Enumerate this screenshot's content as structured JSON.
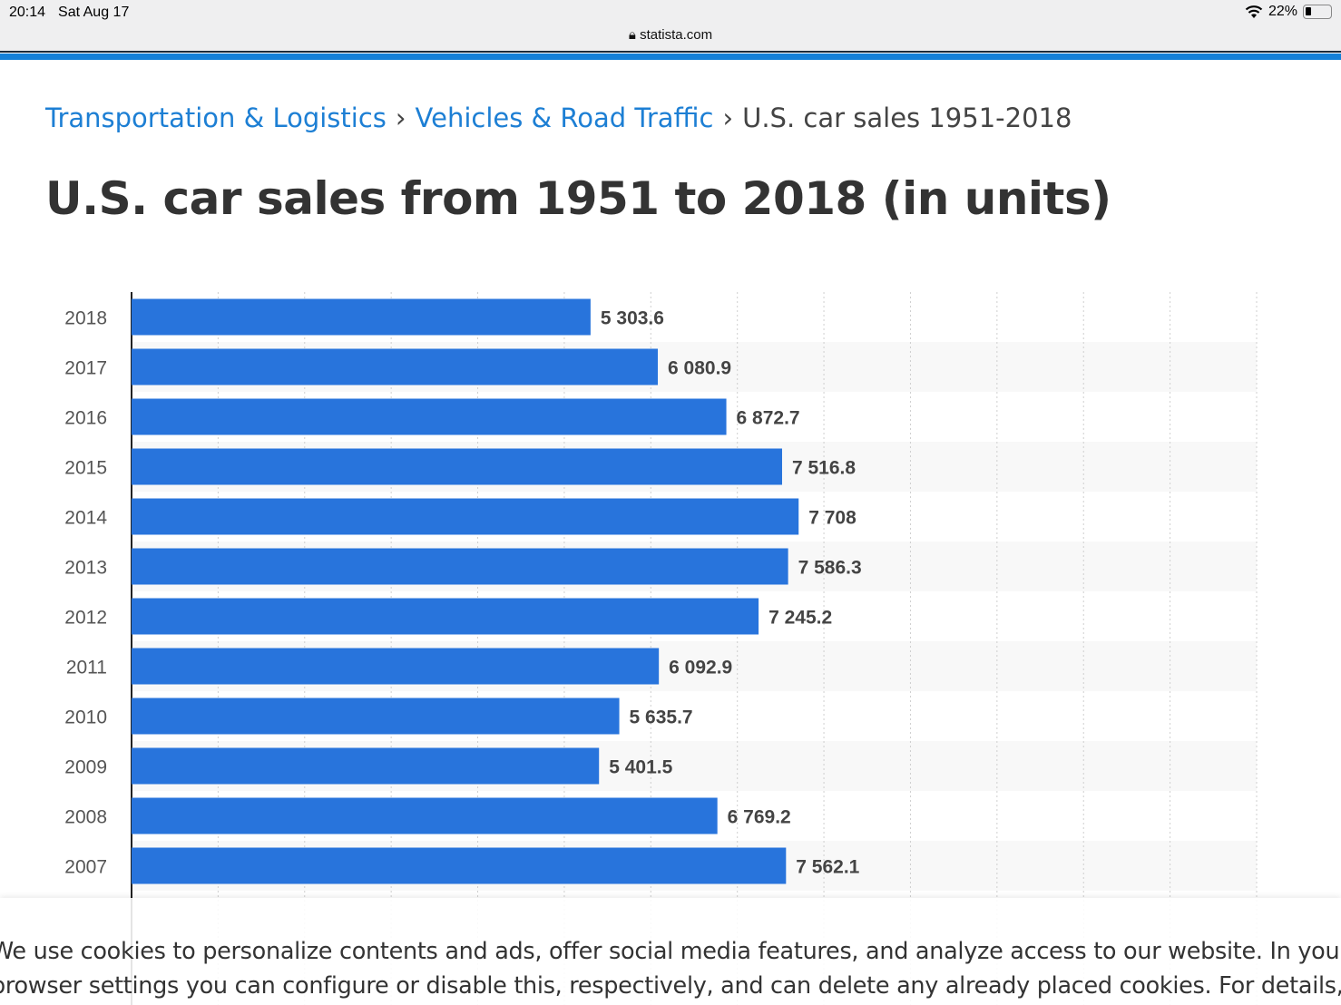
{
  "status_bar": {
    "time": "20:14",
    "date": "Sat Aug 17",
    "battery": "22%",
    "battery_level": 0.22,
    "wifi_icon": "wifi-icon"
  },
  "browser": {
    "url": "statista.com",
    "lock_icon": "lock-icon"
  },
  "breadcrumb": {
    "items": [
      "Transportation & Logistics",
      "Vehicles & Road Traffic"
    ],
    "current": "U.S. car sales 1951-2018",
    "separator": "›"
  },
  "page_title": "U.S. car sales from 1951 to 2018 (in units)",
  "colors": {
    "bar": "#2874dc",
    "link": "#1d7fd4",
    "accent": "#1480d8"
  },
  "chart_data": {
    "type": "bar",
    "orientation": "horizontal",
    "categories": [
      "2018",
      "2017",
      "2016",
      "2015",
      "2014",
      "2013",
      "2012",
      "2011",
      "2010",
      "2009",
      "2008",
      "2007"
    ],
    "values": [
      5303.6,
      6080.9,
      6872.7,
      7516.8,
      7708,
      7586.3,
      7245.2,
      6092.9,
      5635.7,
      5401.5,
      6769.2,
      7562.1
    ],
    "labels": [
      "5 303.6",
      "6 080.9",
      "6 872.7",
      "7 516.8",
      "7 708",
      "7 586.3",
      "7 245.2",
      "6 092.9",
      "5 635.7",
      "5 401.5",
      "6 769.2",
      "7 562.1"
    ],
    "xlim": [
      0,
      13000
    ],
    "grid": true
  },
  "cookie": {
    "line1": "We use cookies to personalize contents and ads, offer social media features, and analyze access to our website. In your",
    "line2": "browser settings you can configure or disable this, respectively, and can delete any already placed cookies. For details, ple"
  }
}
